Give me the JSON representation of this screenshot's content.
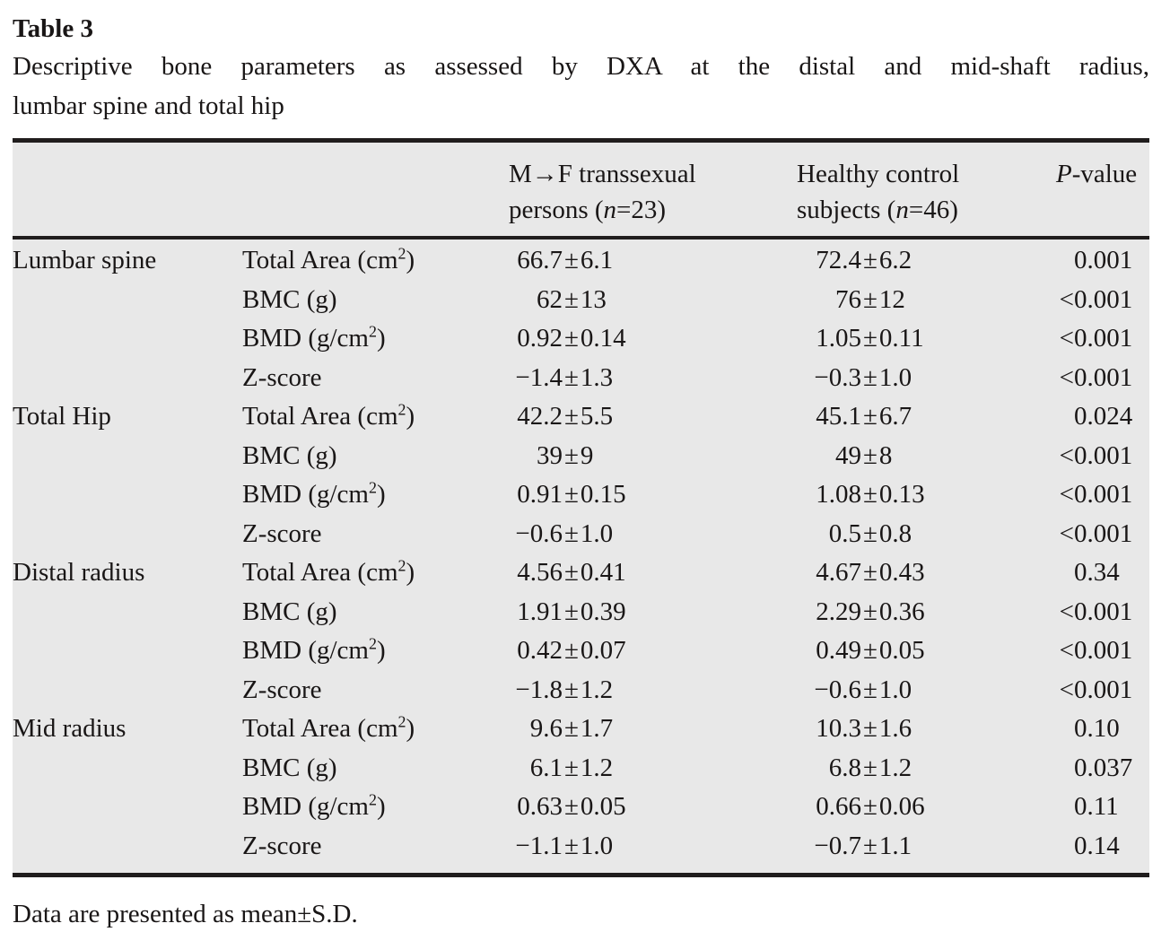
{
  "title": "Table 3",
  "caption_line1": "Descriptive bone parameters as assessed by DXA at the distal and mid-shaft radius,",
  "caption_line2": "lumbar spine and total hip",
  "symbols": {
    "pm": "±"
  },
  "header": {
    "col3_pre": "M→F transsexual persons (",
    "col3_post": "=23)",
    "col4_pre": "Healthy control subjects (",
    "col4_post": "=46)",
    "n": "n",
    "p_italic": "P",
    "p_rest": "-value"
  },
  "rows": [
    {
      "group": "Lumbar spine",
      "p1": "Total Area (cm",
      "sup": "2",
      "p2": ")",
      "v1m": "66.7",
      "v1s": "6.1",
      "v2m": "72.4",
      "v2s": "6.2",
      "plt": "",
      "pv": "0.001"
    },
    {
      "group": "",
      "p1": "BMC (g)",
      "sup": "",
      "p2": "",
      "v1m": "62",
      "v1s": "13",
      "v2m": "76",
      "v2s": "12",
      "plt": "<",
      "pv": "0.001"
    },
    {
      "group": "",
      "p1": "BMD (g/cm",
      "sup": "2",
      "p2": ")",
      "v1m": "0.92",
      "v1s": "0.14",
      "v2m": "1.05",
      "v2s": "0.11",
      "plt": "<",
      "pv": "0.001"
    },
    {
      "group": "",
      "p1": "Z-score",
      "sup": "",
      "p2": "",
      "v1m": "−1.4",
      "v1s": "1.3",
      "v2m": "−0.3",
      "v2s": "1.0",
      "plt": "<",
      "pv": "0.001"
    },
    {
      "group": "Total Hip",
      "p1": "Total Area (cm",
      "sup": "2",
      "p2": ")",
      "v1m": "42.2",
      "v1s": "5.5",
      "v2m": "45.1",
      "v2s": "6.7",
      "plt": "",
      "pv": "0.024"
    },
    {
      "group": "",
      "p1": "BMC (g)",
      "sup": "",
      "p2": "",
      "v1m": "39",
      "v1s": "9",
      "v2m": "49",
      "v2s": "8",
      "plt": "<",
      "pv": "0.001"
    },
    {
      "group": "",
      "p1": "BMD (g/cm",
      "sup": "2",
      "p2": ")",
      "v1m": "0.91",
      "v1s": "0.15",
      "v2m": "1.08",
      "v2s": "0.13",
      "plt": "<",
      "pv": "0.001"
    },
    {
      "group": "",
      "p1": "Z-score",
      "sup": "",
      "p2": "",
      "v1m": "−0.6",
      "v1s": "1.0",
      "v2m": "0.5",
      "v2s": "0.8",
      "plt": "<",
      "pv": "0.001"
    },
    {
      "group": "Distal radius",
      "p1": "Total Area (cm",
      "sup": "2",
      "p2": ")",
      "v1m": "4.56",
      "v1s": "0.41",
      "v2m": "4.67",
      "v2s": "0.43",
      "plt": "",
      "pv": "0.34"
    },
    {
      "group": "",
      "p1": "BMC (g)",
      "sup": "",
      "p2": "",
      "v1m": "1.91",
      "v1s": "0.39",
      "v2m": "2.29",
      "v2s": "0.36",
      "plt": "<",
      "pv": "0.001"
    },
    {
      "group": "",
      "p1": "BMD (g/cm",
      "sup": "2",
      "p2": ")",
      "v1m": "0.42",
      "v1s": "0.07",
      "v2m": "0.49",
      "v2s": "0.05",
      "plt": "<",
      "pv": "0.001"
    },
    {
      "group": "",
      "p1": "Z-score",
      "sup": "",
      "p2": "",
      "v1m": "−1.8",
      "v1s": "1.2",
      "v2m": "−0.6",
      "v2s": "1.0",
      "plt": "<",
      "pv": "0.001"
    },
    {
      "group": "Mid radius",
      "p1": "Total Area (cm",
      "sup": "2",
      "p2": ")",
      "v1m": "9.6",
      "v1s": "1.7",
      "v2m": "10.3",
      "v2s": "1.6",
      "plt": "",
      "pv": "0.10"
    },
    {
      "group": "",
      "p1": "BMC (g)",
      "sup": "",
      "p2": "",
      "v1m": "6.1",
      "v1s": "1.2",
      "v2m": "6.8",
      "v2s": "1.2",
      "plt": "",
      "pv": "0.037"
    },
    {
      "group": "",
      "p1": "BMD (g/cm",
      "sup": "2",
      "p2": ")",
      "v1m": "0.63",
      "v1s": "0.05",
      "v2m": "0.66",
      "v2s": "0.06",
      "plt": "",
      "pv": "0.11"
    },
    {
      "group": "",
      "p1": "Z-score",
      "sup": "",
      "p2": "",
      "v1m": "−1.1",
      "v1s": "1.0",
      "v2m": "−0.7",
      "v2s": "1.1",
      "plt": "",
      "pv": "0.14"
    }
  ],
  "footnote": "Data are presented as mean±S.D."
}
